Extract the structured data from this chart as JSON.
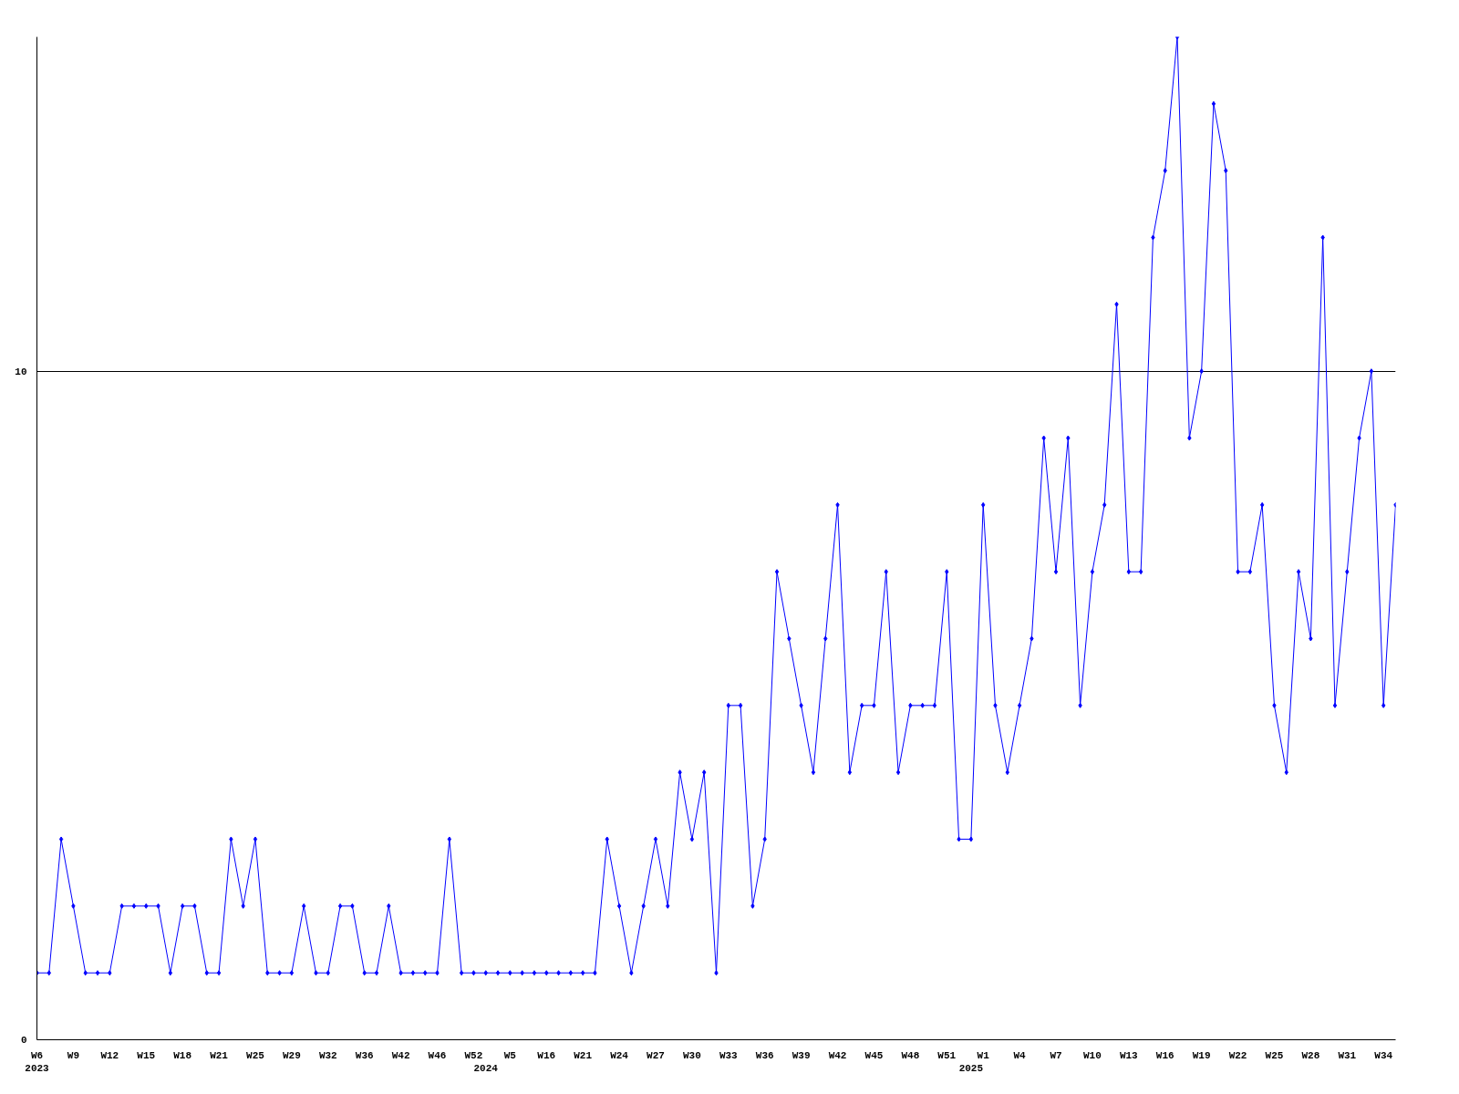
{
  "chart_data": {
    "type": "line",
    "color": "#0000ff",
    "marker": "diamond",
    "grid": "y",
    "ylim": [
      0,
      15
    ],
    "yticks": [
      0,
      10
    ],
    "categories": [
      "W6\n2023",
      null,
      null,
      "W9",
      null,
      null,
      "W12",
      null,
      null,
      "W15",
      null,
      null,
      "W18",
      null,
      null,
      "W21",
      null,
      null,
      "W25",
      null,
      null,
      "W29",
      null,
      null,
      "W32",
      null,
      null,
      "W36",
      null,
      null,
      "W42",
      null,
      null,
      "W46",
      null,
      null,
      "W52",
      "\n2024",
      null,
      "W5",
      null,
      null,
      "W16",
      null,
      null,
      "W21",
      null,
      null,
      "W24",
      null,
      null,
      "W27",
      null,
      null,
      "W30",
      null,
      null,
      "W33",
      null,
      null,
      "W36",
      null,
      null,
      "W39",
      null,
      null,
      "W42",
      null,
      null,
      "W45",
      null,
      null,
      "W48",
      null,
      null,
      "W51",
      null,
      "\n2025",
      "W1",
      null,
      null,
      "W4",
      null,
      null,
      "W7",
      null,
      null,
      "W10",
      null,
      null,
      "W13",
      null,
      null,
      "W16",
      null,
      null,
      "W19",
      null,
      null,
      "W22",
      null,
      null,
      "W25",
      null,
      null,
      "W28",
      null,
      null,
      "W31",
      null,
      null,
      "W34",
      null
    ],
    "values": [
      1,
      1,
      3,
      2,
      1,
      1,
      1,
      2,
      2,
      2,
      2,
      1,
      2,
      2,
      1,
      1,
      3,
      2,
      3,
      1,
      1,
      1,
      2,
      1,
      1,
      2,
      2,
      1,
      1,
      2,
      1,
      1,
      1,
      1,
      3,
      1,
      1,
      1,
      1,
      1,
      1,
      1,
      1,
      1,
      1,
      1,
      1,
      3,
      2,
      1,
      2,
      3,
      2,
      4,
      3,
      4,
      1,
      5,
      5,
      2,
      3,
      7,
      6,
      5,
      4,
      6,
      8,
      4,
      5,
      5,
      7,
      4,
      5,
      5,
      5,
      7,
      3,
      3,
      8,
      5,
      4,
      5,
      6,
      9,
      7,
      9,
      5,
      7,
      8,
      11,
      7,
      7,
      12,
      13,
      15,
      9,
      10,
      14,
      13,
      7,
      7,
      8,
      5,
      4,
      7,
      6,
      12,
      5,
      7,
      9,
      10,
      5,
      8
    ]
  }
}
